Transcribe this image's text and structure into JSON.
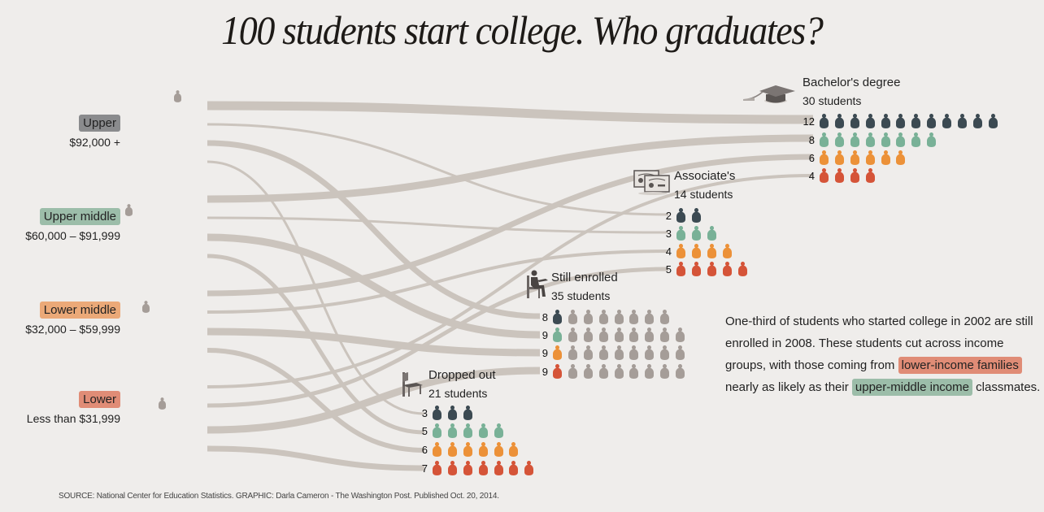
{
  "title": "100 students start college. Who graduates?",
  "colors": {
    "background": "#efedeb",
    "flow": "#cbc4bd",
    "upper": "#3c4a52",
    "upper_middle": "#79b197",
    "lower_middle": "#ec9138",
    "lower": "#d55438",
    "remaining_gray": "#a59d98",
    "chip_upper": "#8a8b8d",
    "chip_upper_middle": "#9cbda9",
    "chip_lower_middle": "#eba978",
    "chip_lower": "#e08c76"
  },
  "groups": [
    {
      "key": "upper",
      "label": "Upper",
      "range": "$92,000 +"
    },
    {
      "key": "upper_middle",
      "label": "Upper middle",
      "range": "$60,000 – $91,999"
    },
    {
      "key": "lower_middle",
      "label": "Lower middle",
      "range": "$32,000 – $59,999"
    },
    {
      "key": "lower",
      "label": "Lower",
      "range": "Less than $31,999"
    }
  ],
  "outcomes": {
    "bachelors": {
      "label": "Bachelor's degree",
      "total": "30 students",
      "icon": "graduation-cap-icon",
      "counts": [
        12,
        8,
        6,
        4
      ]
    },
    "associates": {
      "label": "Associate's",
      "total": "14 students",
      "icon": "diploma-certificate-icon",
      "counts": [
        2,
        3,
        4,
        5
      ]
    },
    "enrolled": {
      "label": "Still enrolled",
      "total": "35 students",
      "icon": "seated-student-icon",
      "counts": [
        8,
        9,
        9,
        9
      ]
    },
    "dropped": {
      "label": "Dropped out",
      "total": "21 students",
      "icon": "empty-chair-icon",
      "counts": [
        3,
        5,
        6,
        7
      ]
    }
  },
  "annotation": {
    "text1": "One-third of students who started college in 2002 are still enrolled in 2008. These students cut across income groups, with those coming from",
    "highlight1": "lower-income families",
    "text2": "nearly as likely as their",
    "highlight2": "upper-middle income",
    "text3": "classmates."
  },
  "source": "SOURCE: National Center for Education Statistics. GRAPHIC: Darla Cameron - The Washington Post. Published Oct. 20, 2014.",
  "chart_data": {
    "type": "sankey",
    "title": "100 students start college. Who graduates?",
    "sources": [
      "Upper ($92,000 +)",
      "Upper middle ($60,000 – $91,999)",
      "Lower middle ($32,000 – $59,999)",
      "Lower (Less than $31,999)"
    ],
    "targets": [
      "Bachelor's degree (30)",
      "Associate's (14)",
      "Still enrolled (35)",
      "Dropped out (21)"
    ],
    "categories": [
      "Upper",
      "Upper middle",
      "Lower middle",
      "Lower"
    ],
    "series": [
      {
        "name": "Bachelor's degree",
        "values": [
          12,
          8,
          6,
          4
        ]
      },
      {
        "name": "Associate's",
        "values": [
          2,
          3,
          4,
          5
        ]
      },
      {
        "name": "Still enrolled",
        "values": [
          8,
          9,
          9,
          9
        ]
      },
      {
        "name": "Dropped out",
        "values": [
          3,
          5,
          6,
          7
        ]
      }
    ],
    "group_totals": [
      25,
      25,
      25,
      25
    ],
    "outcome_totals": [
      30,
      14,
      35,
      21
    ],
    "total_students": 100
  }
}
